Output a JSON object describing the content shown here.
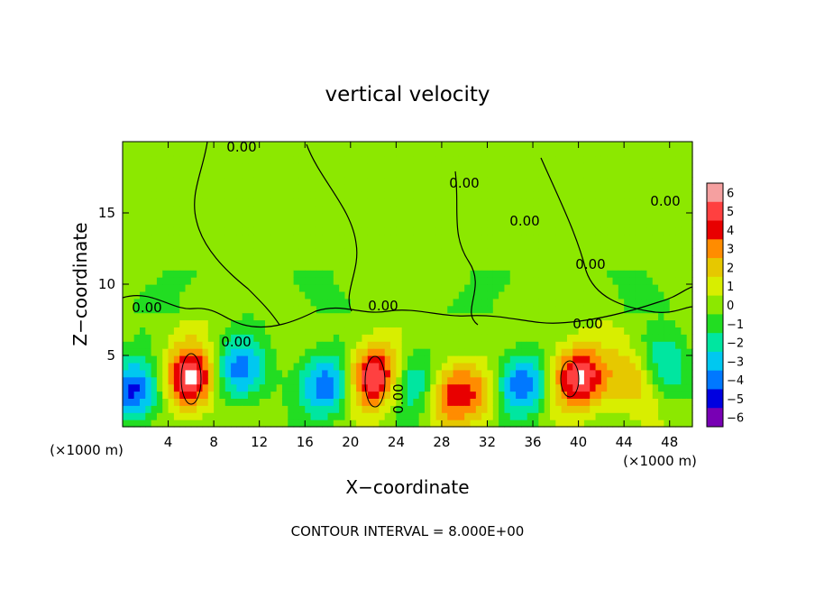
{
  "chart_data": {
    "type": "heatmap",
    "title": "vertical velocity",
    "xlabel": "X−coordinate",
    "ylabel": "Z−coordinate",
    "x_unit": "(×1000 m)",
    "y_unit": "(×1000 m)",
    "xlim": [
      0,
      50
    ],
    "ylim": [
      0,
      20
    ],
    "x_ticks": [
      "4",
      "8",
      "12",
      "16",
      "20",
      "24",
      "28",
      "32",
      "36",
      "40",
      "44",
      "48"
    ],
    "y_ticks": [
      "5",
      "10",
      "15"
    ],
    "contour_labels": [
      "0.00",
      "0.00",
      "0.00",
      "0.00",
      "0.00",
      "0.00",
      "0.00",
      "0.00",
      "0.00",
      "0.00"
    ],
    "contour_interval_text": "CONTOUR INTERVAL = 8.000E+00",
    "colorbar_levels": [
      "6",
      "5",
      "4",
      "3",
      "2",
      "1",
      "0",
      "−1",
      "−2",
      "−3",
      "−4",
      "−5",
      "−6"
    ],
    "colorbar_colors": [
      "#f5a0a0",
      "#ff4040",
      "#e80000",
      "#ff8c00",
      "#e6c800",
      "#d8ee00",
      "#8ce800",
      "#22dd22",
      "#00e6a0",
      "#00c8f0",
      "#0078ff",
      "#0000e0",
      "#7800b4"
    ],
    "features": [
      {
        "type": "updraft",
        "x": 6,
        "z": 3.5,
        "amp": 1.0
      },
      {
        "type": "updraft",
        "x": 22,
        "z": 3.5,
        "amp": 1.0
      },
      {
        "type": "updraft",
        "x": 40,
        "z": 3.5,
        "amp": 0.95
      },
      {
        "type": "updraft",
        "x": 45.5,
        "z": 3.5,
        "amp": 0.7
      },
      {
        "type": "updraft",
        "x": 31,
        "z": 2.5,
        "amp": 0.45
      },
      {
        "type": "updraft",
        "x": 28,
        "z": 2.5,
        "amp": 0.65
      },
      {
        "type": "downdraft",
        "x": 1,
        "z": 2.5,
        "amp": -0.8
      },
      {
        "type": "downdraft",
        "x": 10,
        "z": 4.0,
        "amp": -0.7
      },
      {
        "type": "downdraft",
        "x": 18,
        "z": 3.0,
        "amp": -0.75
      },
      {
        "type": "downdraft",
        "x": 26,
        "z": 3.0,
        "amp": -0.7
      },
      {
        "type": "downdraft",
        "x": 35,
        "z": 3.0,
        "amp": -0.75
      },
      {
        "type": "downdraft",
        "x": 47,
        "z": 4.0,
        "amp": -0.7
      }
    ]
  }
}
